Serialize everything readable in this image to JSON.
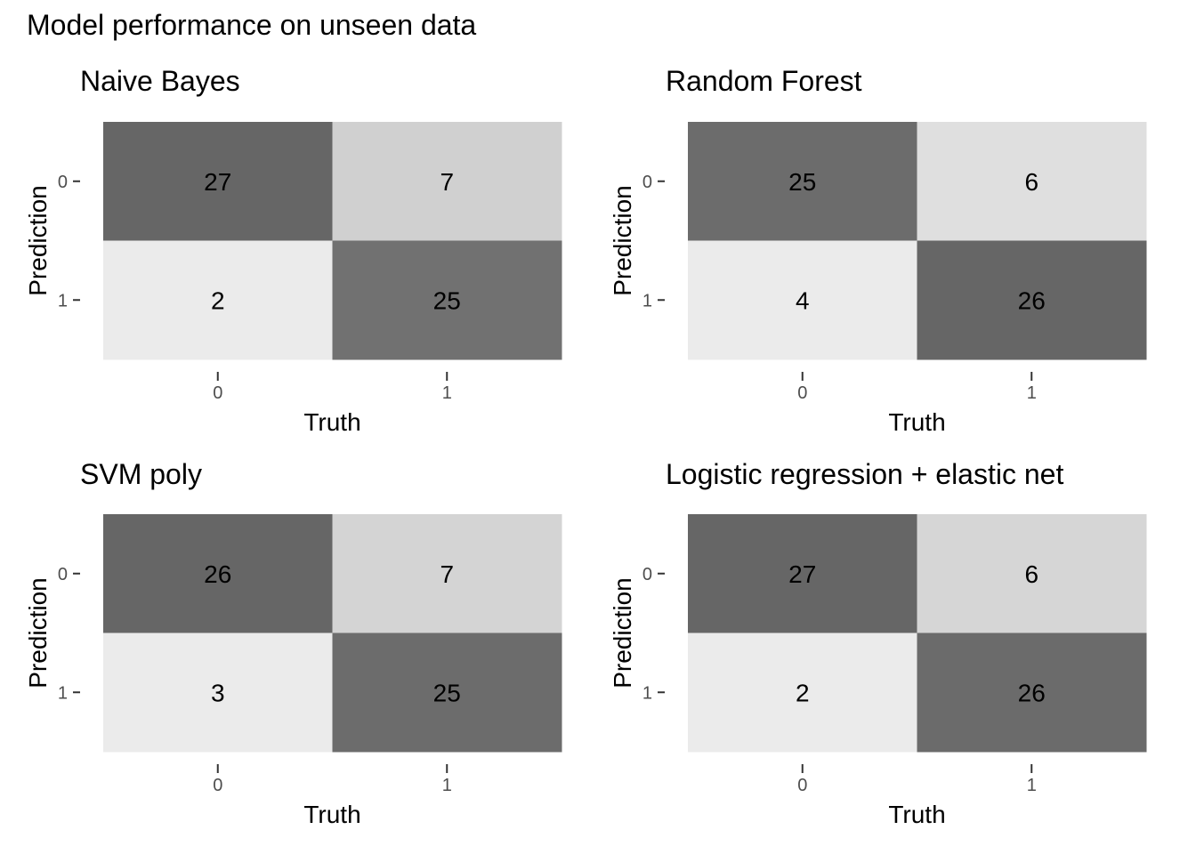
{
  "title": "Model performance on unseen data",
  "chart_data": [
    {
      "type": "heatmap",
      "title": "Naive Bayes",
      "xlabel": "Truth",
      "ylabel": "Prediction",
      "x_categories": [
        "0",
        "1"
      ],
      "y_categories": [
        "0",
        "1"
      ],
      "values": [
        [
          27,
          7
        ],
        [
          2,
          25
        ]
      ]
    },
    {
      "type": "heatmap",
      "title": "Random Forest",
      "xlabel": "Truth",
      "ylabel": "Prediction",
      "x_categories": [
        "0",
        "1"
      ],
      "y_categories": [
        "0",
        "1"
      ],
      "values": [
        [
          25,
          6
        ],
        [
          4,
          26
        ]
      ]
    },
    {
      "type": "heatmap",
      "title": "SVM poly",
      "xlabel": "Truth",
      "ylabel": "Prediction",
      "x_categories": [
        "0",
        "1"
      ],
      "y_categories": [
        "0",
        "1"
      ],
      "values": [
        [
          26,
          7
        ],
        [
          3,
          25
        ]
      ]
    },
    {
      "type": "heatmap",
      "title": "Logistic regression + elastic net",
      "xlabel": "Truth",
      "ylabel": "Prediction",
      "x_categories": [
        "0",
        "1"
      ],
      "y_categories": [
        "0",
        "1"
      ],
      "values": [
        [
          27,
          6
        ],
        [
          2,
          26
        ]
      ]
    }
  ],
  "colors": {
    "low": "#ebebeb",
    "high": "#666666",
    "text": "#000000",
    "tick": "#4d4d4d",
    "tickline": "#333333"
  }
}
